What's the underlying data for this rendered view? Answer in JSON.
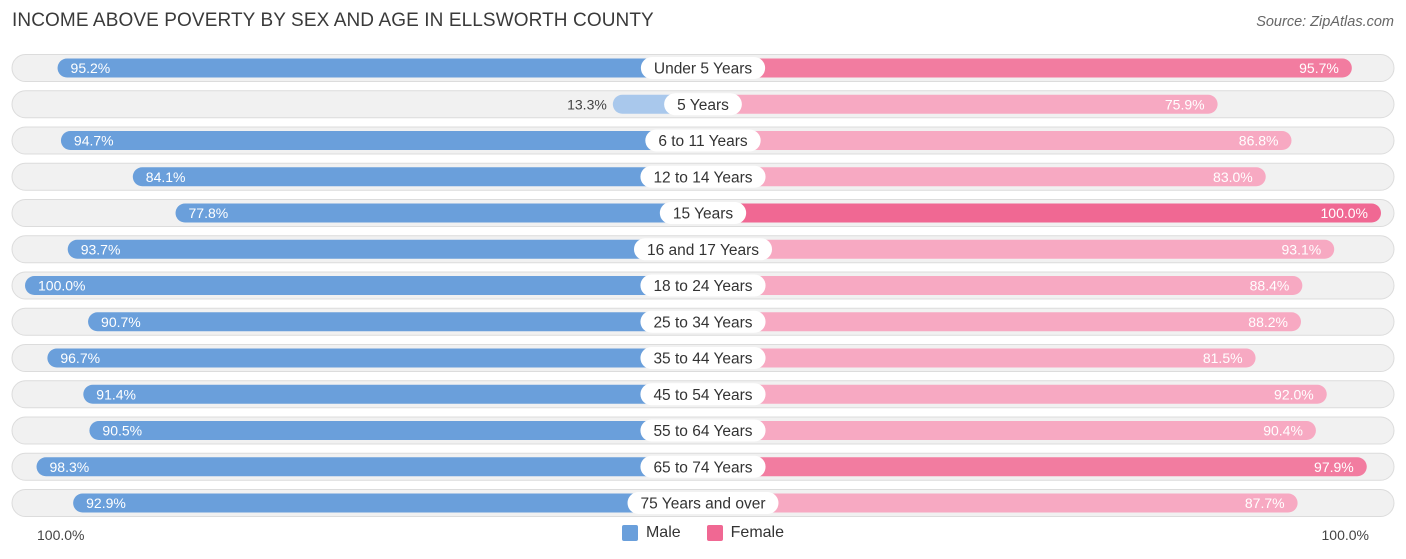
{
  "header": {
    "title": "INCOME ABOVE POVERTY BY SEX AND AGE IN ELLSWORTH COUNTY",
    "source": "Source: ZipAtlas.com"
  },
  "colors": {
    "male_strong": "#6a9fdb",
    "male_light": "#a9c8ec",
    "female_strong": "#f06893",
    "female_light": "#f7a9c2"
  },
  "chart_data": {
    "type": "bar",
    "orientation": "horizontal-diverging",
    "title": "INCOME ABOVE POVERTY BY SEX AND AGE IN ELLSWORTH COUNTY",
    "categories": [
      "Under 5 Years",
      "5 Years",
      "6 to 11 Years",
      "12 to 14 Years",
      "15 Years",
      "16 and 17 Years",
      "18 to 24 Years",
      "25 to 34 Years",
      "35 to 44 Years",
      "45 to 54 Years",
      "55 to 64 Years",
      "65 to 74 Years",
      "75 Years and over"
    ],
    "series": [
      {
        "name": "Male",
        "values": [
          95.2,
          13.3,
          94.7,
          84.1,
          77.8,
          93.7,
          100.0,
          90.7,
          96.7,
          91.4,
          90.5,
          98.3,
          92.9
        ]
      },
      {
        "name": "Female",
        "values": [
          95.7,
          75.9,
          86.8,
          83.0,
          100.0,
          93.1,
          88.4,
          88.2,
          81.5,
          92.0,
          90.4,
          97.9,
          87.7
        ]
      }
    ],
    "xlim": [
      0,
      100
    ],
    "axis_left_label": "100.0%",
    "axis_right_label": "100.0%",
    "legend": [
      "Male",
      "Female"
    ],
    "legend_position": "bottom-center"
  }
}
